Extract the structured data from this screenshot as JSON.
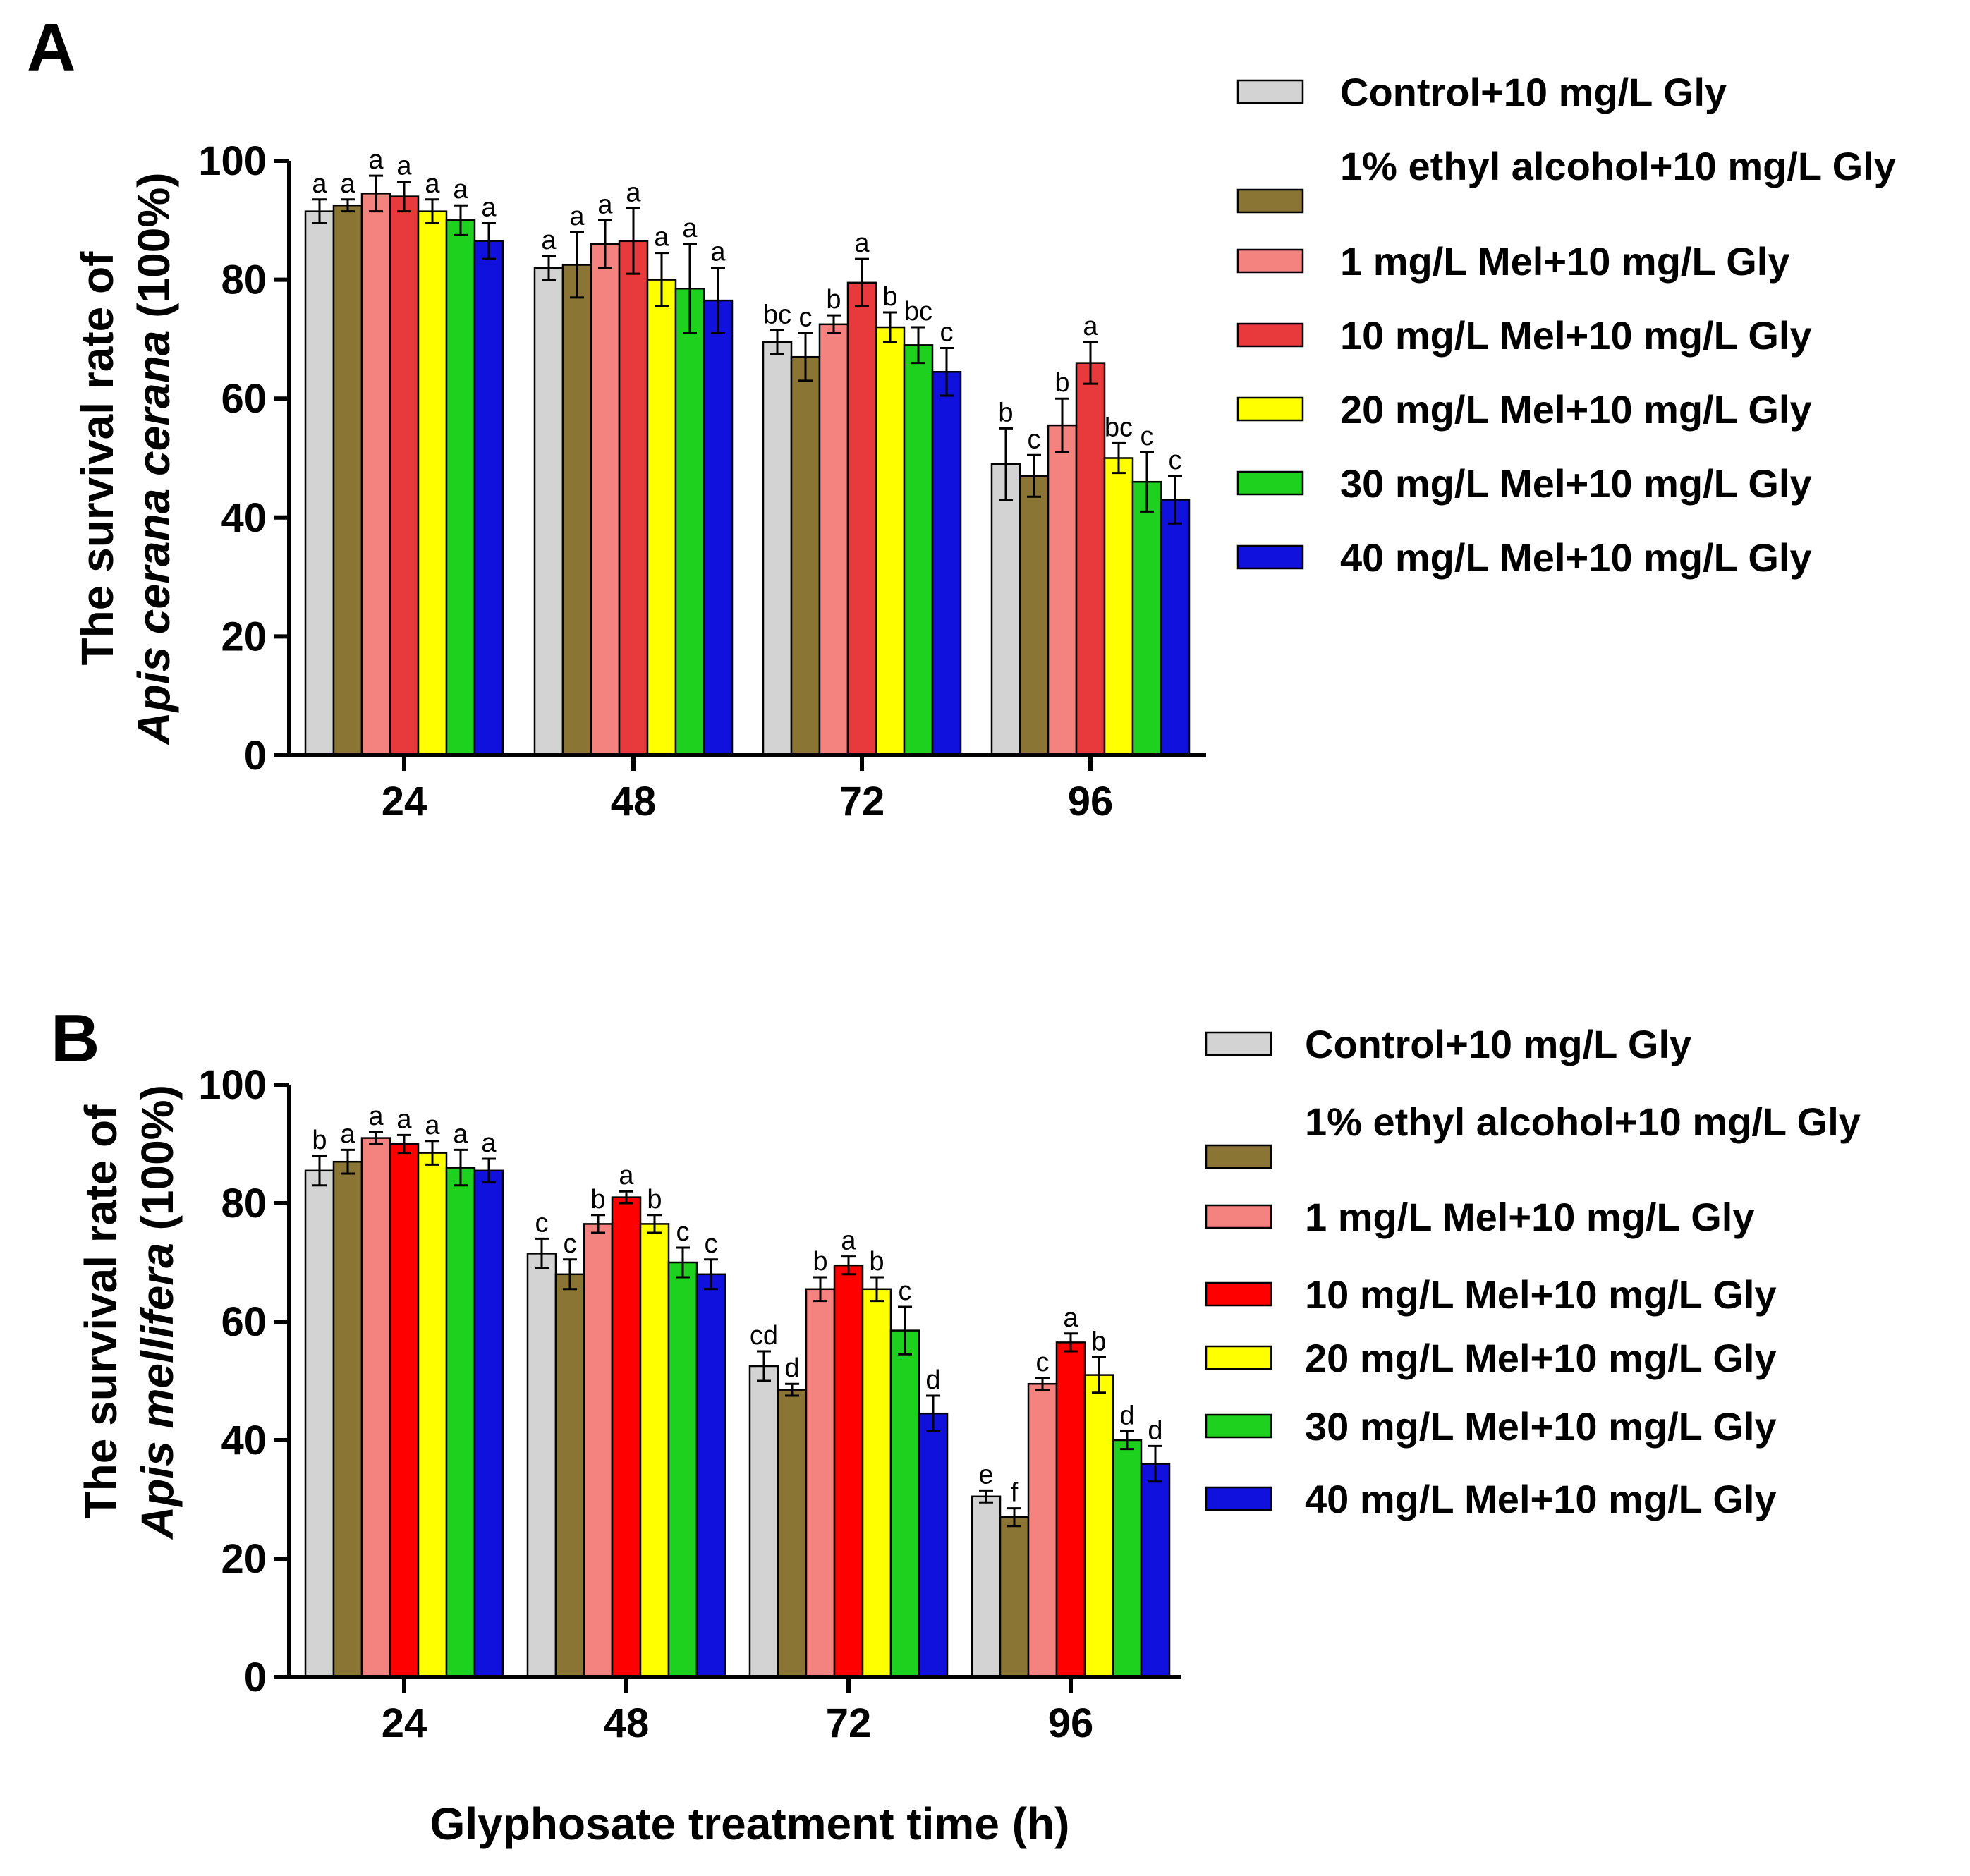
{
  "figure": {
    "x_axis_title": "Glyphosate treatment time (h)"
  },
  "chart_data": [
    {
      "type": "bar",
      "panel_label": "A",
      "ylabel_line1": "The survival rate of",
      "ylabel_species": "Apis cerana cerana",
      "ylabel_unit": "(100%)",
      "xlabel": "",
      "ylim": [
        0,
        100
      ],
      "yticks": [
        0,
        20,
        40,
        60,
        80,
        100
      ],
      "categories": [
        "24",
        "48",
        "72",
        "96"
      ],
      "legend_position": "right",
      "series": [
        {
          "name": "Control+10 mg/L Gly",
          "color": "#d3d3d3",
          "values": [
            91.5,
            82,
            69.5,
            49
          ],
          "errors": [
            2,
            2,
            2,
            6
          ],
          "letters": [
            "a",
            "a",
            "bc",
            "b"
          ]
        },
        {
          "name": "1% ethyl alcohol+10 mg/L Gly",
          "color": "#8b7535",
          "values": [
            92.5,
            82.5,
            67,
            47
          ],
          "errors": [
            1,
            5.5,
            4,
            3.5
          ],
          "letters": [
            "a",
            "a",
            "c",
            "c"
          ]
        },
        {
          "name": "1 mg/L Mel+10 mg/L Gly",
          "color": "#f4837f",
          "values": [
            94.5,
            86,
            72.5,
            55.5
          ],
          "errors": [
            3,
            4,
            1.5,
            4.5
          ],
          "letters": [
            "a",
            "a",
            "b",
            "b"
          ]
        },
        {
          "name": "10 mg/L Mel+10 mg/L Gly",
          "color": "#e8393d",
          "values": [
            94,
            86.5,
            79.5,
            66
          ],
          "errors": [
            2.5,
            5.5,
            4,
            3.5
          ],
          "letters": [
            "a",
            "a",
            "a",
            "a"
          ]
        },
        {
          "name": "20 mg/L Mel+10 mg/L Gly",
          "color": "#ffff00",
          "values": [
            91.5,
            80,
            72,
            50
          ],
          "errors": [
            2,
            4.5,
            2.5,
            2.5
          ],
          "letters": [
            "a",
            "a",
            "b",
            "bc"
          ]
        },
        {
          "name": "30 mg/L Mel+10 mg/L Gly",
          "color": "#1fd11f",
          "values": [
            90,
            78.5,
            69,
            46
          ],
          "errors": [
            2.5,
            7.5,
            3,
            5
          ],
          "letters": [
            "a",
            "a",
            "bc",
            "c"
          ]
        },
        {
          "name": "40 mg/L Mel+10 mg/L Gly",
          "color": "#1111dd",
          "values": [
            86.5,
            76.5,
            64.5,
            43
          ],
          "errors": [
            3,
            5.5,
            4,
            4
          ],
          "letters": [
            "a",
            "a",
            "c",
            "c"
          ]
        }
      ]
    },
    {
      "type": "bar",
      "panel_label": "B",
      "ylabel_line1": "The survival rate of",
      "ylabel_species": "Apis mellifera",
      "ylabel_unit": "(100%)",
      "xlabel": "Glyphosate treatment time (h)",
      "ylim": [
        0,
        100
      ],
      "yticks": [
        0,
        20,
        40,
        60,
        80,
        100
      ],
      "categories": [
        "24",
        "48",
        "72",
        "96"
      ],
      "legend_position": "right",
      "series": [
        {
          "name": "Control+10 mg/L Gly",
          "color": "#d3d3d3",
          "values": [
            85.5,
            71.5,
            52.5,
            30.5
          ],
          "errors": [
            2.5,
            2.5,
            2.5,
            1
          ],
          "letters": [
            "b",
            "c",
            "cd",
            "e"
          ]
        },
        {
          "name": "1% ethyl alcohol+10 mg/L Gly",
          "color": "#8b7535",
          "values": [
            87,
            68,
            48.5,
            27
          ],
          "errors": [
            2,
            2.5,
            1,
            1.5
          ],
          "letters": [
            "a",
            "c",
            "d",
            "f"
          ]
        },
        {
          "name": "1 mg/L Mel+10 mg/L Gly",
          "color": "#f4837f",
          "values": [
            91,
            76.5,
            65.5,
            49.5
          ],
          "errors": [
            1,
            1.5,
            2,
            1
          ],
          "letters": [
            "a",
            "b",
            "b",
            "c"
          ]
        },
        {
          "name": "10 mg/L Mel+10 mg/L Gly",
          "color": "#ff0000",
          "values": [
            90,
            81,
            69.5,
            56.5
          ],
          "errors": [
            1.5,
            1,
            1.5,
            1.5
          ],
          "letters": [
            "a",
            "a",
            "a",
            "a"
          ]
        },
        {
          "name": "20 mg/L Mel+10 mg/L Gly",
          "color": "#ffff00",
          "values": [
            88.5,
            76.5,
            65.5,
            51
          ],
          "errors": [
            2,
            1.5,
            2,
            3
          ],
          "letters": [
            "a",
            "b",
            "b",
            "b"
          ]
        },
        {
          "name": "30 mg/L Mel+10 mg/L Gly",
          "color": "#1fd11f",
          "values": [
            86,
            70,
            58.5,
            40
          ],
          "errors": [
            3,
            2.5,
            4,
            1.5
          ],
          "letters": [
            "a",
            "c",
            "c",
            "d"
          ]
        },
        {
          "name": "40 mg/L Mel+10 mg/L Gly",
          "color": "#1111dd",
          "values": [
            85.5,
            68,
            44.5,
            36
          ],
          "errors": [
            2,
            2.5,
            3,
            3
          ],
          "letters": [
            "a",
            "c",
            "d",
            "d"
          ]
        }
      ]
    }
  ]
}
